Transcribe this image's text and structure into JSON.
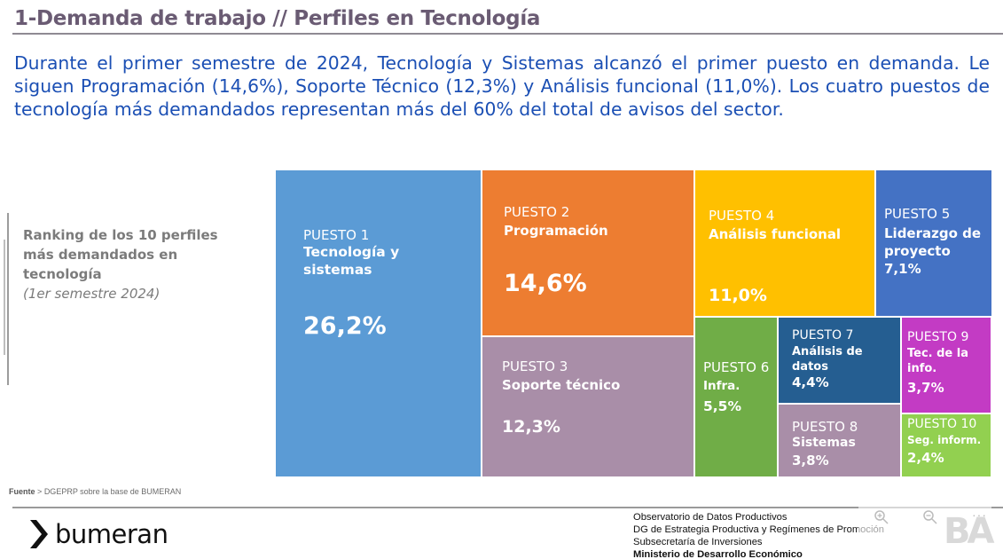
{
  "header": {
    "title": "1-Demanda de trabajo // Perfiles en Tecnología"
  },
  "intro": "Durante el primer semestre de 2024, Tecnología y Sistemas alcanzó el primer puesto en demanda. Le siguen Programación (14,6%), Soporte Técnico (12,3%) y Análisis funcional (11,0%). Los cuatro puestos de tecnología más demandados representan más del 60% del total de avisos del sector.",
  "sidebar": {
    "title": "Ranking de los 10  perfiles más demandados en tecnología",
    "subtitle": "(1er semestre 2024)"
  },
  "chart_data": {
    "type": "treemap",
    "items": [
      {
        "rank_label": "PUESTO 1",
        "name": "Tecnología y sistemas",
        "value": 26.2,
        "value_label": "26,2%",
        "color": "#5b9bd5"
      },
      {
        "rank_label": "PUESTO 2",
        "name": "Programación",
        "value": 14.6,
        "value_label": "14,6%",
        "color": "#ed7d31"
      },
      {
        "rank_label": "PUESTO 3",
        "name": "Soporte técnico",
        "value": 12.3,
        "value_label": "12,3%",
        "color": "#a98ea8"
      },
      {
        "rank_label": "PUESTO 4",
        "name": "Análisis funcional",
        "value": 11.0,
        "value_label": "11,0%",
        "color": "#ffc000"
      },
      {
        "rank_label": "PUESTO 5",
        "name": "Liderazgo de proyecto",
        "value": 7.1,
        "value_label": "7,1%",
        "color": "#4472c4"
      },
      {
        "rank_label": "PUESTO 6",
        "name": "Infra.",
        "value": 5.5,
        "value_label": "5,5%",
        "color": "#70ad47"
      },
      {
        "rank_label": "PUESTO 7",
        "name": "Análisis de datos",
        "value": 4.4,
        "value_label": "4,4%",
        "color": "#255e91"
      },
      {
        "rank_label": "PUESTO 8",
        "name": "Sistemas",
        "value": 3.8,
        "value_label": "3,8%",
        "color": "#a98ea8"
      },
      {
        "rank_label": "PUESTO 9",
        "name": "Tec. de la info.",
        "value": 3.7,
        "value_label": "3,7%",
        "color": "#c33bc4"
      },
      {
        "rank_label": "PUESTO 10",
        "name": "Seg. inform.",
        "value": 2.4,
        "value_label": "2,4%",
        "color": "#92d050"
      }
    ]
  },
  "source": {
    "label": "Fuente",
    "text": "DGEPRP sobre la base de BUMERAN"
  },
  "footer": {
    "logo_text": "bumeran",
    "org_lines": [
      "Observatorio de Datos Productivos",
      "DG de Estrategia Productiva y Regímenes de Promoción",
      "Subsecretaría de Inversiones",
      "Ministerio de Desarrollo Económico"
    ],
    "ba_logo": "BA"
  },
  "icons": {
    "zoom_in": "zoom-in-icon",
    "zoom_out": "zoom-out-icon",
    "more": "more-icon"
  }
}
